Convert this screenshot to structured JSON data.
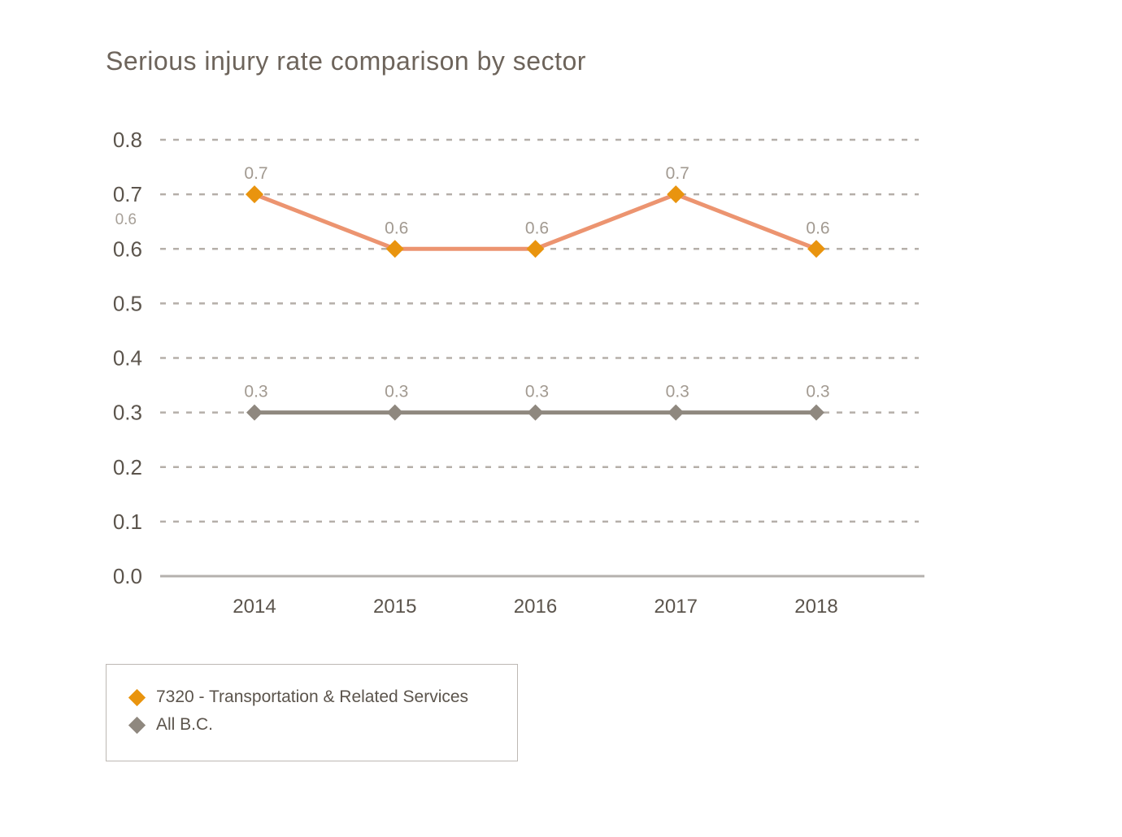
{
  "title": "Serious injury rate comparison by sector",
  "colors": {
    "background": "#ffffff",
    "title": "#6d645b",
    "axis_label": "#5b544c",
    "data_label": "#a29a91",
    "stray_label": "#a7a098",
    "gridline": "#b5afa9",
    "baseline": "#b5b1ae",
    "series_transportation_marker": "#e9940e",
    "series_transportation_line": "#ec9470",
    "series_all_bc": "#8f887f",
    "legend_border": "#bdb8b3"
  },
  "chart_data": {
    "type": "line",
    "title": "Serious injury rate comparison by sector",
    "categories": [
      "2014",
      "2015",
      "2016",
      "2017",
      "2018"
    ],
    "series": [
      {
        "name": "7320 - Transportation & Related Services",
        "values": [
          0.7,
          0.6,
          0.6,
          0.7,
          0.6
        ],
        "color": "#e9940e",
        "line_color": "#ec9470",
        "marker": "diamond",
        "marker_radius": 11
      },
      {
        "name": "All B.C.",
        "values": [
          0.3,
          0.3,
          0.3,
          0.3,
          0.3
        ],
        "color": "#8f887f",
        "line_color": "#8f887f",
        "marker": "diamond",
        "marker_radius": 10
      }
    ],
    "xlabel": "",
    "ylabel": "",
    "ylim": [
      0.0,
      0.8
    ],
    "ytick_step": 0.1,
    "yticks": [
      "0.0",
      "0.1",
      "0.2",
      "0.3",
      "0.4",
      "0.5",
      "0.6",
      "0.7",
      "0.8"
    ],
    "grid": "horizontal-dashed",
    "data_labels_shown": true,
    "legend_position": "bottom-left",
    "annotations": [
      {
        "text": "0.6",
        "note": "small light label in left margin between 0.7 and 0.6 gridlines"
      }
    ]
  },
  "legend": {
    "items": [
      {
        "label": "7320 - Transportation & Related Services",
        "icon": "orange-diamond-icon"
      },
      {
        "label": "All B.C.",
        "icon": "gray-diamond-icon"
      }
    ]
  }
}
